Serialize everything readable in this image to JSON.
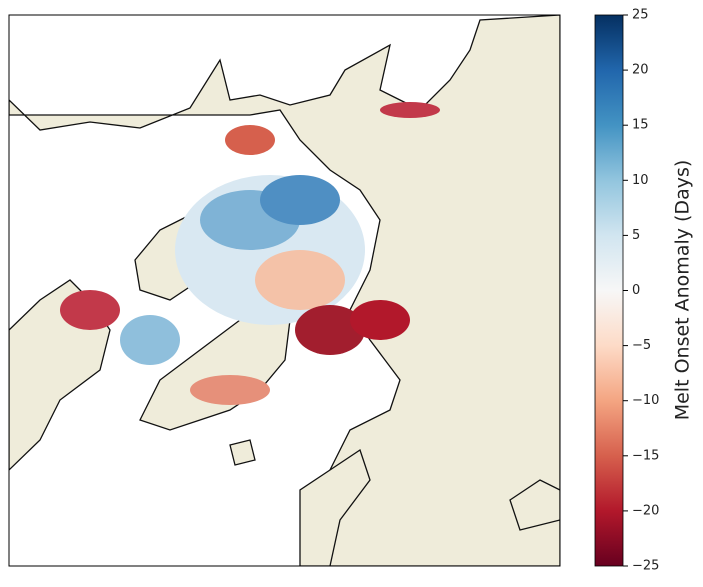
{
  "map": {
    "colorbar": {
      "label": "Melt Onset Anomaly (Days)",
      "range": [
        -25,
        25
      ],
      "ticks": [
        {
          "value": 25,
          "label": "25"
        },
        {
          "value": 20,
          "label": "20"
        },
        {
          "value": 15,
          "label": "15"
        },
        {
          "value": 10,
          "label": "10"
        },
        {
          "value": 5,
          "label": "5"
        },
        {
          "value": 0,
          "label": "0"
        },
        {
          "value": -5,
          "label": "−5"
        },
        {
          "value": -10,
          "label": "−10"
        },
        {
          "value": -15,
          "label": "−15"
        },
        {
          "value": -20,
          "label": "−20"
        },
        {
          "value": -25,
          "label": "−25"
        }
      ]
    }
  }
}
